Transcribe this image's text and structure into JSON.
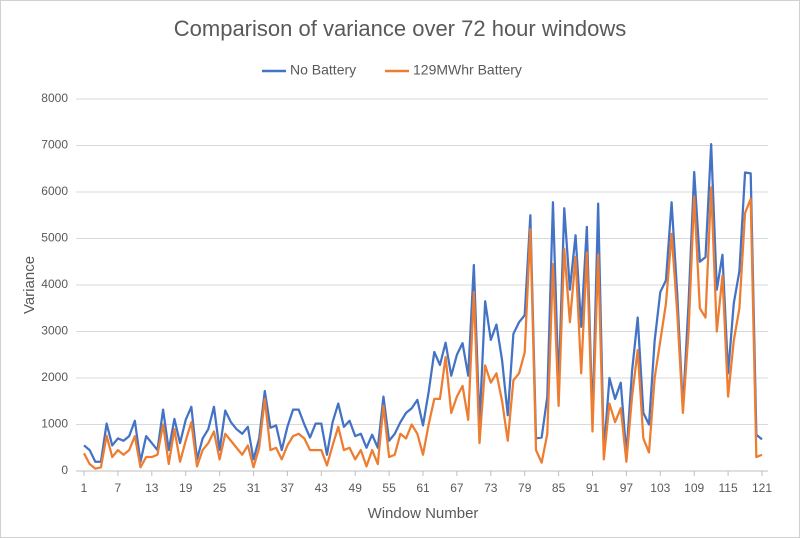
{
  "chart_data": {
    "type": "line",
    "title": "Comparison of variance over 72 hour windows",
    "x_label": "Window Number",
    "y_label": "Variance",
    "x": [
      1,
      2,
      3,
      4,
      5,
      6,
      7,
      8,
      9,
      10,
      11,
      12,
      13,
      14,
      15,
      16,
      17,
      18,
      19,
      20,
      21,
      22,
      23,
      24,
      25,
      26,
      27,
      28,
      29,
      30,
      31,
      32,
      33,
      34,
      35,
      36,
      37,
      38,
      39,
      40,
      41,
      42,
      43,
      44,
      45,
      46,
      47,
      48,
      49,
      50,
      51,
      52,
      53,
      54,
      55,
      56,
      57,
      58,
      59,
      60,
      61,
      62,
      63,
      64,
      65,
      66,
      67,
      68,
      69,
      70,
      71,
      72,
      73,
      74,
      75,
      76,
      77,
      78,
      79,
      80,
      81,
      82,
      83,
      84,
      85,
      86,
      87,
      88,
      89,
      90,
      91,
      92,
      93,
      94,
      95,
      96,
      97,
      98,
      99,
      100,
      101,
      102,
      103,
      104,
      105,
      106,
      107,
      108,
      109,
      110,
      111,
      112,
      113,
      114,
      115,
      116,
      117,
      118,
      119,
      120,
      121
    ],
    "series": [
      {
        "name": "No Battery",
        "color": "#4472c4",
        "values": [
          550,
          450,
          200,
          200,
          1020,
          550,
          700,
          650,
          750,
          1080,
          200,
          750,
          600,
          450,
          1320,
          450,
          1120,
          600,
          1100,
          1380,
          250,
          700,
          900,
          1380,
          450,
          1300,
          1050,
          900,
          800,
          950,
          250,
          700,
          1720,
          930,
          980,
          450,
          950,
          1320,
          1320,
          1000,
          720,
          1020,
          1020,
          350,
          1050,
          1450,
          950,
          1080,
          750,
          800,
          500,
          780,
          500,
          1600,
          650,
          800,
          1050,
          1250,
          1350,
          1530,
          980,
          1700,
          2560,
          2280,
          2760,
          2050,
          2500,
          2750,
          2050,
          4430,
          1000,
          3650,
          2820,
          3150,
          2380,
          1200,
          2950,
          3200,
          3350,
          5500,
          700,
          720,
          1600,
          5780,
          1800,
          5650,
          3900,
          5070,
          3100,
          5250,
          1050,
          5750,
          400,
          2000,
          1550,
          1900,
          350,
          2150,
          3300,
          1250,
          1000,
          2800,
          3850,
          4100,
          5780,
          3800,
          1350,
          3600,
          6430,
          4500,
          4600,
          7030,
          3900,
          4650,
          2100,
          3600,
          4300,
          6420,
          6400,
          780,
          680
        ]
      },
      {
        "name": "129MWhr Battery",
        "color": "#ed7d31",
        "values": [
          380,
          150,
          50,
          80,
          760,
          300,
          450,
          350,
          450,
          750,
          80,
          300,
          300,
          350,
          1000,
          150,
          900,
          200,
          650,
          1050,
          100,
          450,
          600,
          850,
          250,
          800,
          650,
          500,
          350,
          550,
          80,
          500,
          1550,
          450,
          500,
          250,
          550,
          750,
          800,
          700,
          450,
          450,
          450,
          120,
          550,
          950,
          450,
          500,
          250,
          450,
          100,
          450,
          150,
          1400,
          300,
          350,
          800,
          700,
          1000,
          800,
          350,
          1000,
          1550,
          1550,
          2450,
          1250,
          1600,
          1830,
          1100,
          3850,
          600,
          2270,
          1900,
          2100,
          1500,
          650,
          1950,
          2100,
          2550,
          5200,
          450,
          180,
          800,
          4450,
          1400,
          4780,
          3200,
          4600,
          2100,
          4700,
          850,
          4650,
          250,
          1450,
          1050,
          1350,
          200,
          1600,
          2600,
          700,
          400,
          2000,
          2800,
          3600,
          5100,
          3400,
          1250,
          3000,
          5900,
          3500,
          3300,
          6100,
          3000,
          4200,
          1600,
          2800,
          3500,
          5550,
          5850,
          300,
          350
        ]
      }
    ],
    "xlim": [
      1,
      121
    ],
    "xticks": [
      1,
      7,
      13,
      19,
      25,
      31,
      37,
      43,
      49,
      55,
      61,
      67,
      73,
      79,
      85,
      91,
      97,
      103,
      109,
      115,
      121
    ],
    "ylim": [
      0,
      8000
    ],
    "yticks": [
      0,
      1000,
      2000,
      3000,
      4000,
      5000,
      6000,
      7000,
      8000
    ],
    "grid": true,
    "legend": "top"
  }
}
